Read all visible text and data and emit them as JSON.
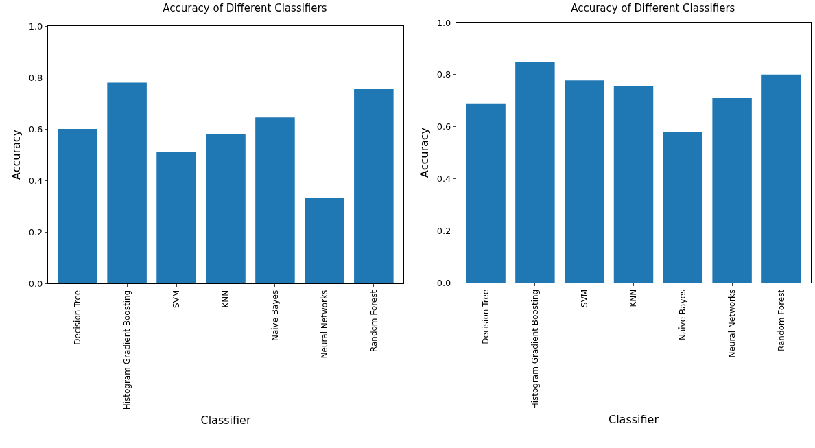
{
  "chart_data": [
    {
      "type": "bar",
      "title": "Accuracy of Different Classifiers",
      "xlabel": "Classifier",
      "ylabel": "Accuracy",
      "categories": [
        "Decision Tree",
        "Histogram Gradient Boosting",
        "SVM",
        "KNN",
        "Naive Bayes",
        "Neural Networks",
        "Random Forest"
      ],
      "values": [
        0.6,
        0.78,
        0.51,
        0.58,
        0.645,
        0.333,
        0.757
      ],
      "color": "#1f77b4",
      "ylim": [
        0,
        1
      ],
      "yticks": [
        {
          "value": 0,
          "label": "0.0"
        },
        {
          "value": 0.2,
          "label": "0.2"
        },
        {
          "value": 0.4,
          "label": "0.4"
        },
        {
          "value": 0.6,
          "label": "0.6"
        },
        {
          "value": 0.8,
          "label": "0.8"
        },
        {
          "value": 1,
          "label": "1.0"
        }
      ],
      "grid": false,
      "legend": false
    },
    {
      "type": "bar",
      "title": "Accuracy of Different Classifiers",
      "xlabel": "Classifier",
      "ylabel": "Accuracy",
      "categories": [
        "Decision Tree",
        "Histogram Gradient Boosting",
        "SVM",
        "KNN",
        "Naive Bayes",
        "Neural Networks",
        "Random Forest"
      ],
      "values": [
        0.689,
        0.847,
        0.778,
        0.757,
        0.578,
        0.71,
        0.8
      ],
      "color": "#1f77b4",
      "ylim": [
        0,
        1
      ],
      "yticks": [
        {
          "value": 0,
          "label": "0.0"
        },
        {
          "value": 0.2,
          "label": "0.2"
        },
        {
          "value": 0.4,
          "label": "0.4"
        },
        {
          "value": 0.6,
          "label": "0.6"
        },
        {
          "value": 0.8,
          "label": "0.8"
        },
        {
          "value": 1,
          "label": "1.0"
        }
      ],
      "grid": false,
      "legend": false
    }
  ]
}
